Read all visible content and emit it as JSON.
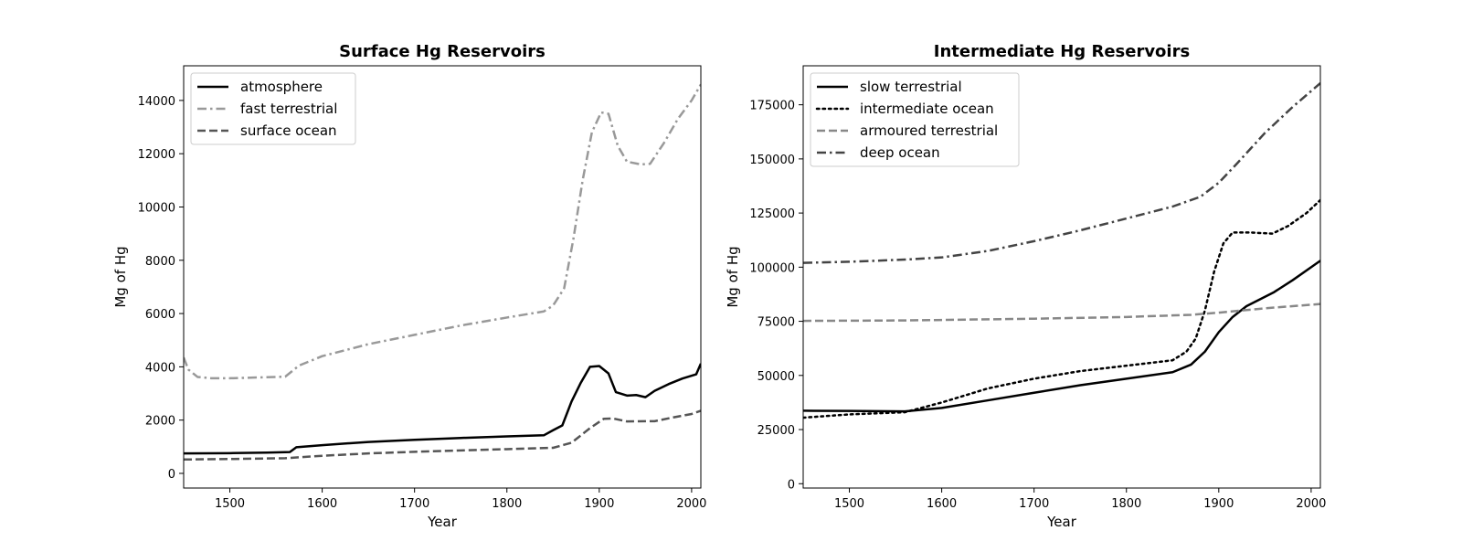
{
  "chart_data": [
    {
      "type": "line",
      "title": "Surface Hg Reservoirs",
      "xlabel": "Year",
      "ylabel": "Mg of Hg",
      "xlim": [
        1450,
        2010
      ],
      "ylim": [
        -550,
        15300
      ],
      "xticks": [
        1500,
        1600,
        1700,
        1800,
        1900,
        2000
      ],
      "yticks": [
        0,
        2000,
        4000,
        6000,
        8000,
        10000,
        12000,
        14000
      ],
      "legend_position": "top-left",
      "series": [
        {
          "name": "atmosphere",
          "color": "#000000",
          "dash": "solid",
          "width": 2.5,
          "points": [
            [
              1450,
              750
            ],
            [
              1500,
              760
            ],
            [
              1540,
              780
            ],
            [
              1565,
              800
            ],
            [
              1572,
              980
            ],
            [
              1600,
              1060
            ],
            [
              1650,
              1180
            ],
            [
              1700,
              1260
            ],
            [
              1750,
              1330
            ],
            [
              1800,
              1390
            ],
            [
              1840,
              1430
            ],
            [
              1850,
              1620
            ],
            [
              1860,
              1800
            ],
            [
              1870,
              2700
            ],
            [
              1880,
              3400
            ],
            [
              1890,
              4000
            ],
            [
              1900,
              4030
            ],
            [
              1910,
              3750
            ],
            [
              1918,
              3050
            ],
            [
              1930,
              2920
            ],
            [
              1940,
              2940
            ],
            [
              1950,
              2860
            ],
            [
              1960,
              3100
            ],
            [
              1975,
              3350
            ],
            [
              1990,
              3560
            ],
            [
              2005,
              3720
            ],
            [
              2010,
              4120
            ]
          ]
        },
        {
          "name": "fast terrestrial",
          "color": "#999999",
          "dash": "dashdot",
          "width": 2.5,
          "points": [
            [
              1450,
              4350
            ],
            [
              1455,
              3900
            ],
            [
              1465,
              3620
            ],
            [
              1480,
              3570
            ],
            [
              1500,
              3570
            ],
            [
              1530,
              3600
            ],
            [
              1560,
              3630
            ],
            [
              1575,
              4050
            ],
            [
              1600,
              4400
            ],
            [
              1650,
              4850
            ],
            [
              1700,
              5200
            ],
            [
              1750,
              5550
            ],
            [
              1800,
              5850
            ],
            [
              1840,
              6080
            ],
            [
              1850,
              6300
            ],
            [
              1862,
              6950
            ],
            [
              1872,
              8800
            ],
            [
              1882,
              11000
            ],
            [
              1892,
              12800
            ],
            [
              1902,
              13550
            ],
            [
              1910,
              13500
            ],
            [
              1920,
              12300
            ],
            [
              1930,
              11700
            ],
            [
              1945,
              11600
            ],
            [
              1955,
              11620
            ],
            [
              1970,
              12400
            ],
            [
              1985,
              13300
            ],
            [
              2000,
              14000
            ],
            [
              2010,
              14600
            ]
          ]
        },
        {
          "name": "surface ocean",
          "color": "#555555",
          "dash": "dashed",
          "width": 2.5,
          "points": [
            [
              1450,
              520
            ],
            [
              1500,
              540
            ],
            [
              1560,
              570
            ],
            [
              1600,
              660
            ],
            [
              1650,
              750
            ],
            [
              1700,
              810
            ],
            [
              1750,
              860
            ],
            [
              1800,
              910
            ],
            [
              1850,
              960
            ],
            [
              1870,
              1150
            ],
            [
              1890,
              1700
            ],
            [
              1905,
              2050
            ],
            [
              1915,
              2060
            ],
            [
              1930,
              1950
            ],
            [
              1960,
              1960
            ],
            [
              1980,
              2100
            ],
            [
              2000,
              2230
            ],
            [
              2010,
              2350
            ]
          ]
        }
      ]
    },
    {
      "type": "line",
      "title": "Intermediate Hg Reservoirs",
      "xlabel": "Year",
      "ylabel": "Mg of Hg",
      "xlim": [
        1450,
        2010
      ],
      "ylim": [
        -2000,
        193000
      ],
      "xticks": [
        1500,
        1600,
        1700,
        1800,
        1900,
        2000
      ],
      "yticks": [
        0,
        25000,
        50000,
        75000,
        100000,
        125000,
        150000,
        175000
      ],
      "legend_position": "top-left",
      "series": [
        {
          "name": "slow terrestrial",
          "color": "#000000",
          "dash": "solid",
          "width": 2.5,
          "points": [
            [
              1450,
              33700
            ],
            [
              1500,
              33600
            ],
            [
              1560,
              33400
            ],
            [
              1600,
              35000
            ],
            [
              1650,
              38500
            ],
            [
              1700,
              42000
            ],
            [
              1750,
              45500
            ],
            [
              1800,
              48500
            ],
            [
              1850,
              51500
            ],
            [
              1870,
              55000
            ],
            [
              1885,
              61000
            ],
            [
              1900,
              70000
            ],
            [
              1915,
              77000
            ],
            [
              1930,
              82000
            ],
            [
              1960,
              88500
            ],
            [
              1980,
              94000
            ],
            [
              2000,
              100000
            ],
            [
              2010,
              103000
            ]
          ]
        },
        {
          "name": "intermediate ocean",
          "color": "#000000",
          "dash": "dotted",
          "width": 2.5,
          "points": [
            [
              1450,
              30500
            ],
            [
              1500,
              32000
            ],
            [
              1560,
              33000
            ],
            [
              1600,
              37500
            ],
            [
              1650,
              44000
            ],
            [
              1700,
              48500
            ],
            [
              1750,
              52000
            ],
            [
              1800,
              54500
            ],
            [
              1850,
              57000
            ],
            [
              1865,
              61000
            ],
            [
              1875,
              67000
            ],
            [
              1885,
              80000
            ],
            [
              1895,
              98000
            ],
            [
              1905,
              111000
            ],
            [
              1915,
              116000
            ],
            [
              1935,
              116000
            ],
            [
              1958,
              115500
            ],
            [
              1975,
              119000
            ],
            [
              1995,
              125000
            ],
            [
              2010,
              131000
            ]
          ]
        },
        {
          "name": "armoured terrestrial",
          "color": "#888888",
          "dash": "dashed",
          "width": 2.5,
          "points": [
            [
              1450,
              75200
            ],
            [
              1560,
              75400
            ],
            [
              1700,
              76200
            ],
            [
              1800,
              77000
            ],
            [
              1870,
              78000
            ],
            [
              1900,
              79000
            ],
            [
              1950,
              81000
            ],
            [
              2010,
              83000
            ]
          ]
        },
        {
          "name": "deep ocean",
          "color": "#444444",
          "dash": "dashdot",
          "width": 2.5,
          "points": [
            [
              1450,
              102000
            ],
            [
              1500,
              102500
            ],
            [
              1560,
              103500
            ],
            [
              1600,
              104500
            ],
            [
              1650,
              107500
            ],
            [
              1700,
              112000
            ],
            [
              1750,
              117000
            ],
            [
              1800,
              122500
            ],
            [
              1850,
              128000
            ],
            [
              1880,
              132500
            ],
            [
              1900,
              139000
            ],
            [
              1920,
              148000
            ],
            [
              1950,
              162000
            ],
            [
              1980,
              174000
            ],
            [
              2010,
              185000
            ]
          ]
        }
      ]
    }
  ]
}
